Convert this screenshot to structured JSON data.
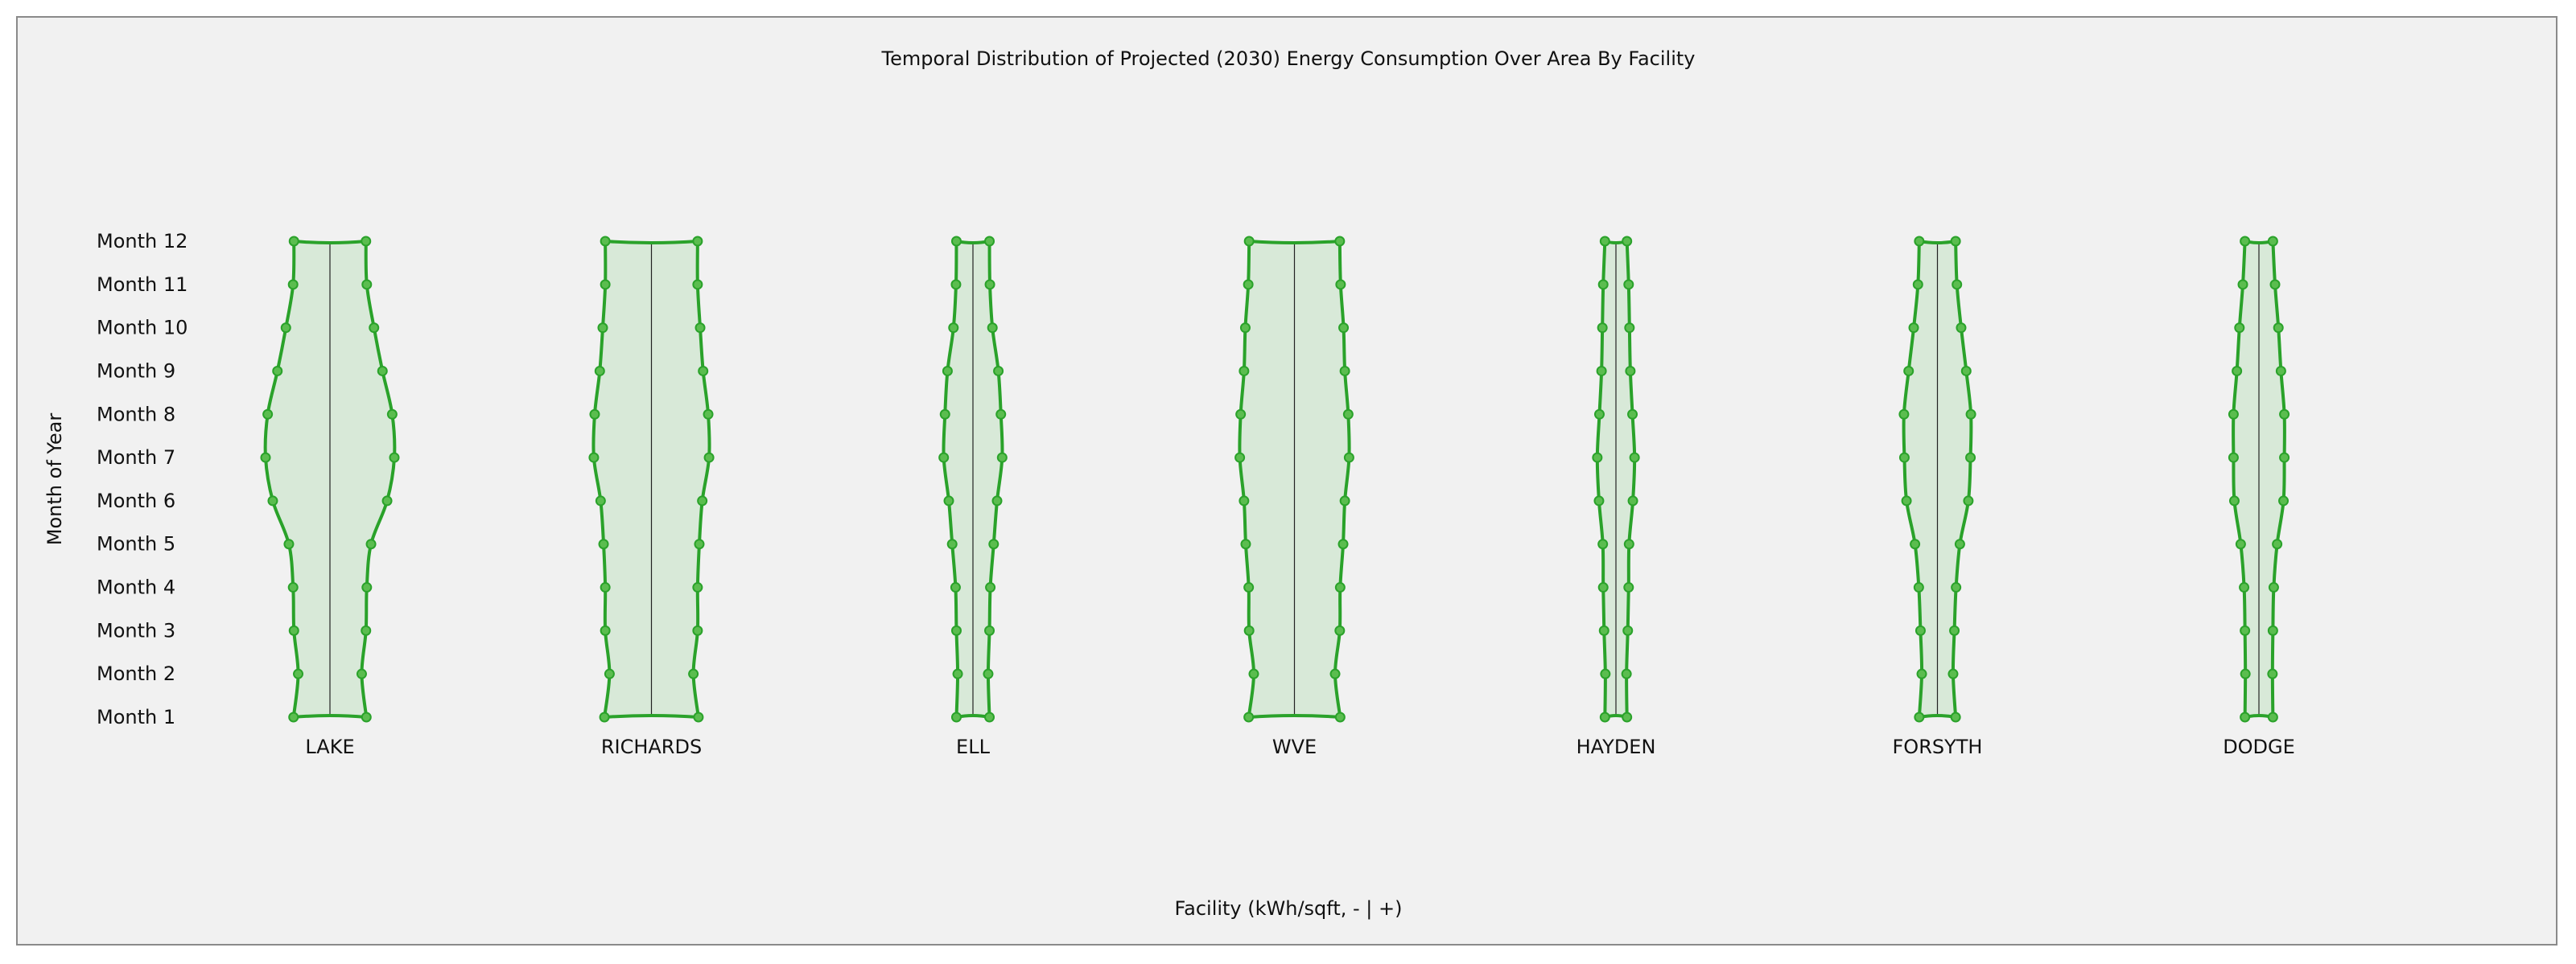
{
  "chart_data": {
    "type": "violin",
    "title": "Temporal Distribution of Projected (2030) Energy Consumption Over Area By Facility",
    "xlabel": "Facility (kWh/sqft, - | +)",
    "ylabel": "Month of Year",
    "y_tick_labels": [
      "Month 1",
      "Month 2",
      "Month 3",
      "Month 4",
      "Month 5",
      "Month 6",
      "Month 7",
      "Month 8",
      "Month 9",
      "Month 10",
      "Month 11",
      "Month 12"
    ],
    "categories": [
      "LAKE",
      "RICHARDS",
      "ELL",
      "WVE",
      "HAYDEN",
      "FORSYTH",
      "DODGE"
    ],
    "series": [
      {
        "name": "LAKE",
        "values": [
          0.86,
          0.75,
          0.85,
          0.87,
          0.97,
          1.35,
          1.52,
          1.47,
          1.24,
          1.04,
          0.87,
          0.85
        ]
      },
      {
        "name": "RICHARDS",
        "values": [
          1.11,
          0.99,
          1.09,
          1.09,
          1.13,
          1.2,
          1.36,
          1.34,
          1.22,
          1.15,
          1.09,
          1.09
        ]
      },
      {
        "name": "ELL",
        "values": [
          0.39,
          0.36,
          0.39,
          0.41,
          0.49,
          0.57,
          0.69,
          0.66,
          0.6,
          0.46,
          0.4,
          0.39
        ]
      },
      {
        "name": "WVE",
        "values": [
          1.08,
          0.96,
          1.07,
          1.08,
          1.15,
          1.19,
          1.29,
          1.27,
          1.19,
          1.16,
          1.09,
          1.07
        ]
      },
      {
        "name": "HAYDEN",
        "values": [
          0.26,
          0.25,
          0.28,
          0.3,
          0.31,
          0.4,
          0.44,
          0.39,
          0.34,
          0.32,
          0.3,
          0.26
        ]
      },
      {
        "name": "FORSYTH",
        "values": [
          0.43,
          0.37,
          0.4,
          0.44,
          0.53,
          0.73,
          0.78,
          0.79,
          0.68,
          0.56,
          0.46,
          0.43
        ]
      },
      {
        "name": "DODGE",
        "values": [
          0.33,
          0.32,
          0.33,
          0.35,
          0.43,
          0.58,
          0.6,
          0.6,
          0.52,
          0.46,
          0.38,
          0.33
        ]
      }
    ],
    "colors": {
      "stroke": "#2aa22a",
      "fill": "#d8e9d8",
      "marker_fill": "#5bbd4f",
      "centerline": "#222222",
      "background": "#f1f1f1",
      "text": "#111111"
    },
    "grid": false,
    "legend": "none"
  }
}
